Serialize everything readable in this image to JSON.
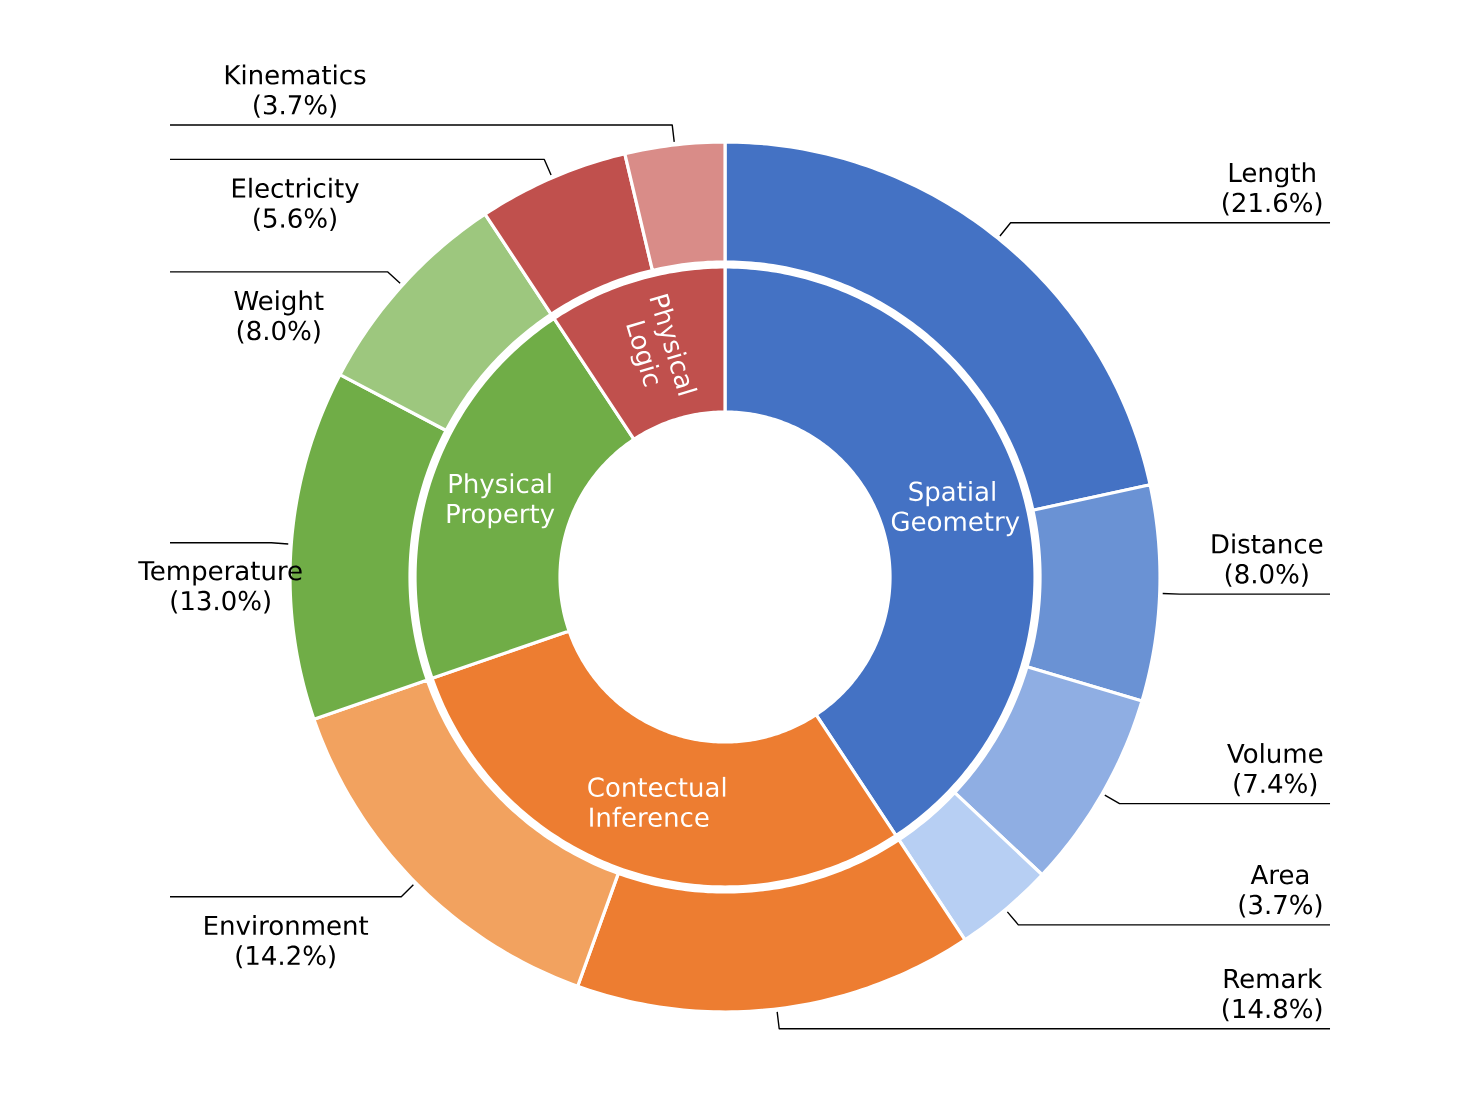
{
  "chart_data": [
    {
      "type": "donut",
      "categories": [
        "Length",
        "Distance",
        "Volume",
        "Area",
        "Remark",
        "Environment",
        "Temperature",
        "Weight",
        "Electricity",
        "Kinematics"
      ],
      "values": [
        21.6,
        8.0,
        7.4,
        3.7,
        14.8,
        14.2,
        13.0,
        8.0,
        5.6,
        3.7
      ],
      "value_labels": [
        "(21.6%)",
        "(8.0%)",
        "(7.4%)",
        "(3.7%)",
        "(14.8%)",
        "(14.2%)",
        "(13.0%)",
        "(8.0%)",
        "(5.6%)",
        "(3.7%)"
      ],
      "colors": [
        "#4472c4",
        "#6a92d4",
        "#8faee3",
        "#b7cff3",
        "#ed7d31",
        "#f2a25f",
        "#70ad47",
        "#9dc77e",
        "#c0504d",
        "#d98c88"
      ]
    },
    {
      "type": "donut",
      "categories": [
        "Spatial Geometry",
        "Contectual Inference",
        "Physical Property",
        "Physical Logic"
      ],
      "values": [
        40.7,
        29.0,
        21.0,
        9.3
      ],
      "colors": [
        "#4472c4",
        "#ed7d31",
        "#70ad47",
        "#c0504d"
      ]
    }
  ]
}
